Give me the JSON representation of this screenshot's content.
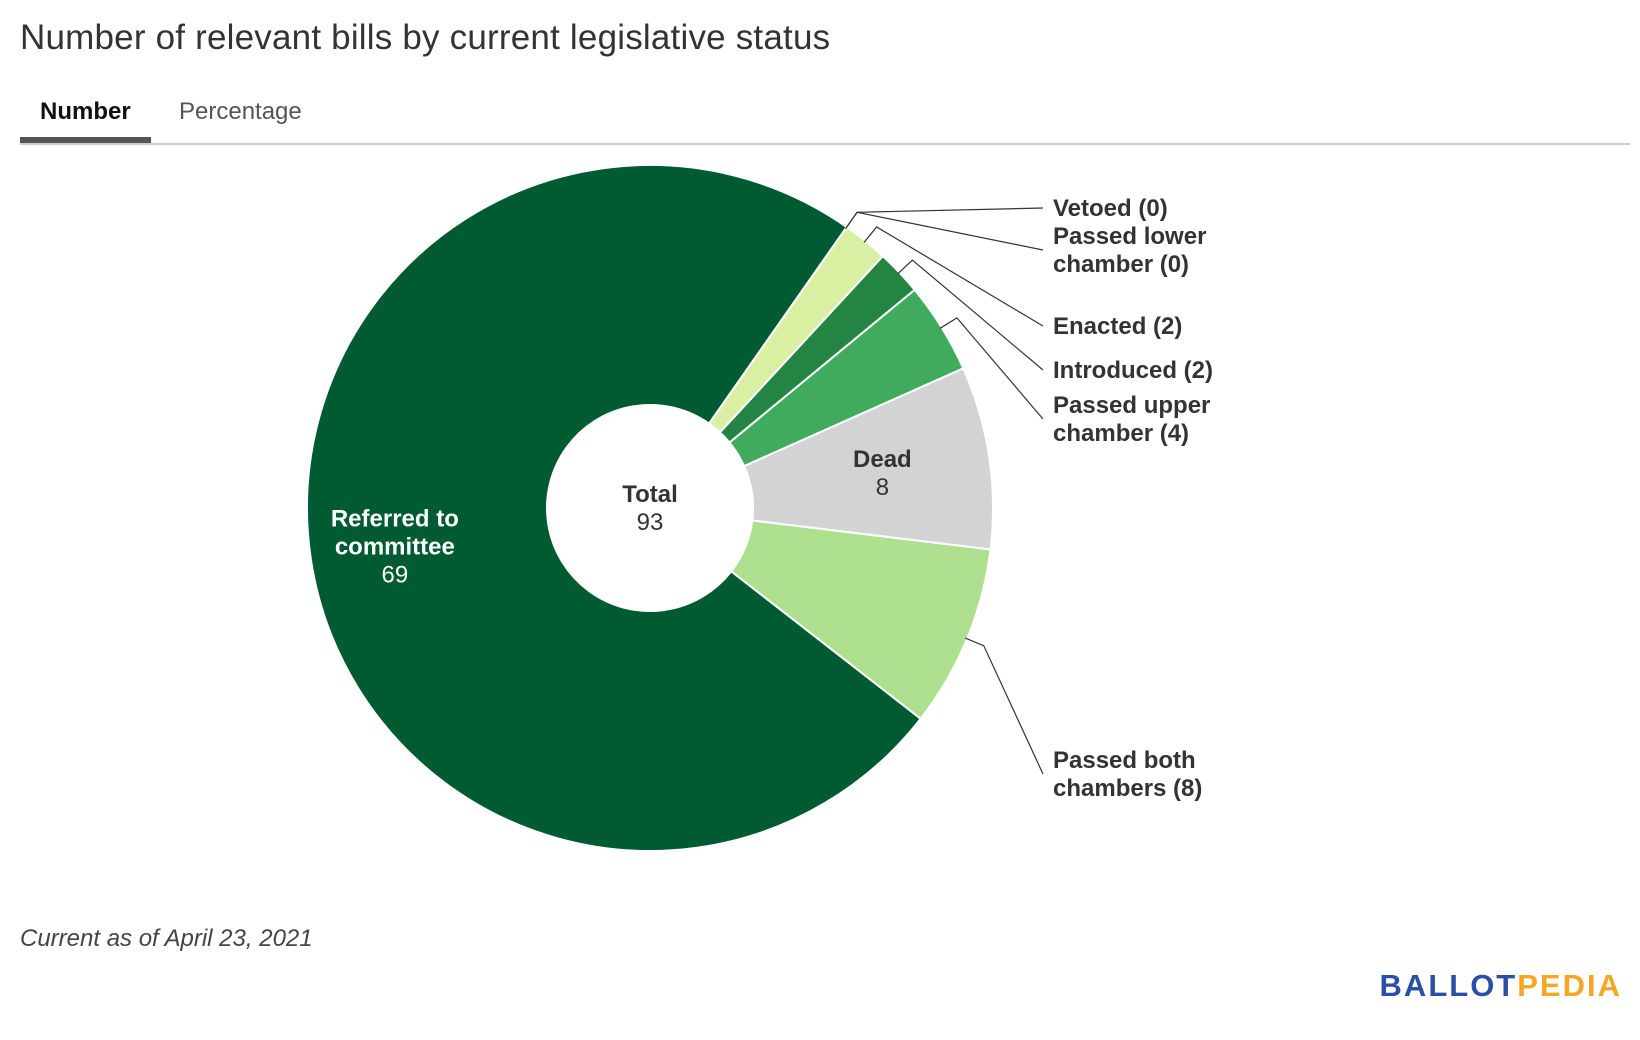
{
  "title": "Number of relevant bills by current legislative status",
  "tabs": [
    {
      "label": "Number",
      "active": true
    },
    {
      "label": "Percentage",
      "active": false
    }
  ],
  "chart_data": {
    "type": "pie",
    "donut": true,
    "center_label": {
      "title": "Total",
      "value": "93"
    },
    "slices": [
      {
        "label": "Referred to committee",
        "value": 69,
        "color": "#005a32",
        "label_inside": true,
        "display": [
          "Referred to",
          "committee",
          "69"
        ]
      },
      {
        "label": "Passed both chambers",
        "value": 8,
        "color": "#addf8e",
        "label_inside": false,
        "display": [
          "Passed both",
          "chambers (8)"
        ]
      },
      {
        "label": "Dead",
        "value": 8,
        "color": "#d3d3d3",
        "label_inside": true,
        "display": [
          "Dead",
          "8"
        ]
      },
      {
        "label": "Passed upper chamber",
        "value": 4,
        "color": "#41ab5d",
        "label_inside": false,
        "display": [
          "Passed upper",
          "chamber (4)"
        ]
      },
      {
        "label": "Introduced",
        "value": 2,
        "color": "#238443",
        "label_inside": false,
        "display": [
          "Introduced (2)"
        ]
      },
      {
        "label": "Enacted",
        "value": 2,
        "color": "#d9f0a3",
        "label_inside": false,
        "display": [
          "Enacted (2)"
        ]
      },
      {
        "label": "Passed lower chamber",
        "value": 0,
        "color": "#78c679",
        "label_inside": false,
        "display": [
          "Passed lower",
          "chamber (0)"
        ]
      },
      {
        "label": "Vetoed",
        "value": 0,
        "color": "#f7fcb9",
        "label_inside": false,
        "display": [
          "Vetoed (0)"
        ]
      }
    ]
  },
  "footnote": "Current as of April 23, 2021",
  "logo": {
    "part1": "BALLOT",
    "part2": "PEDIA"
  }
}
